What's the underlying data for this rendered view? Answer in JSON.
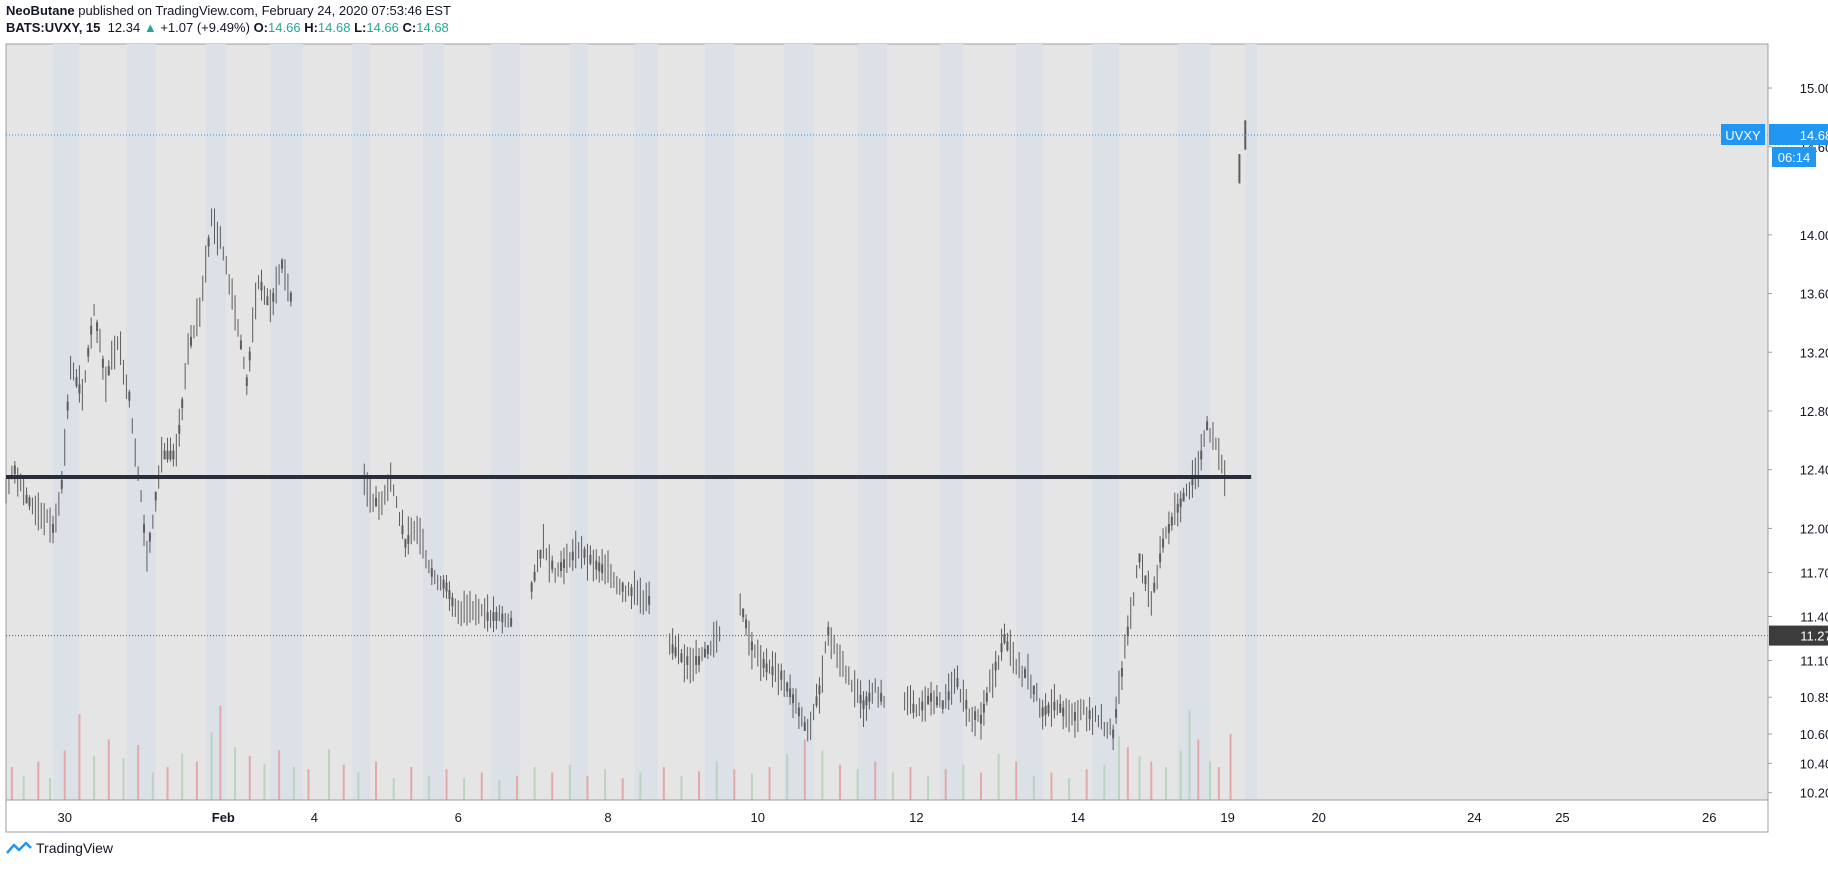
{
  "header": {
    "author": "NeoButane",
    "published_text": "published on TradingView.com, February 24, 2020 07:53:46 EST",
    "symbol": "BATS:UVXY, 15",
    "last": "12.34",
    "change": "+1.07 (+9.49%)",
    "o_label": "O:",
    "o_value": "14.66",
    "h_label": "H:",
    "h_value": "14.68",
    "l_label": "L:",
    "l_value": "14.66",
    "c_label": "C:",
    "c_value": "14.68",
    "up_arrow_icon": "triangle-up-icon"
  },
  "footer": {
    "brand": "TradingView",
    "logo_icon": "tradingview-logo-icon"
  },
  "colors": {
    "plot_bg": "#e5e5e5",
    "session_band": "#dbe1e7",
    "candle": "#5d5d5d",
    "vol_up": "#b9d4bf",
    "vol_down": "#e2a9a9",
    "level_line": "#2a2e39",
    "last_price": "#2196f3",
    "support_tag": "#3c3c3c"
  },
  "chart_data": {
    "type": "candlestick",
    "ylim": [
      10.15,
      15.3
    ],
    "y_ticks": [
      "15.00",
      "14.60",
      "14.00",
      "13.60",
      "13.20",
      "12.80",
      "12.40",
      "12.00",
      "11.70",
      "11.40",
      "11.10",
      "10.85",
      "10.60",
      "10.40",
      "10.20"
    ],
    "x_ticks": [
      "30",
      "Feb",
      "4",
      "6",
      "8",
      "10",
      "12",
      "14",
      "19",
      "20",
      "24",
      "25",
      "26"
    ],
    "x_tick_index": [
      2.0,
      7.4,
      10.5,
      15.4,
      20.5,
      25.6,
      31.0,
      36.5,
      41.6,
      44.7,
      50.0,
      53.0,
      58.0
    ],
    "x_range": [
      0,
      60
    ],
    "close_path": [
      [
        0,
        12.25
      ],
      [
        0.3,
        12.4
      ],
      [
        0.7,
        12.2
      ],
      [
        1.2,
        12.1
      ],
      [
        1.6,
        12.0
      ],
      [
        1.9,
        12.3
      ],
      [
        2.2,
        13.1
      ],
      [
        2.6,
        12.9
      ],
      [
        3.0,
        13.5
      ],
      [
        3.4,
        13.0
      ],
      [
        3.8,
        13.3
      ],
      [
        4.2,
        12.9
      ],
      [
        4.6,
        12.2
      ],
      [
        4.8,
        11.8
      ],
      [
        5.3,
        12.5
      ],
      [
        5.8,
        12.5
      ],
      [
        6.2,
        13.2
      ],
      [
        6.6,
        13.5
      ],
      [
        7.0,
        14.1
      ],
      [
        7.4,
        13.9
      ],
      [
        7.8,
        13.5
      ],
      [
        8.2,
        13.0
      ],
      [
        8.6,
        13.7
      ],
      [
        9.0,
        13.5
      ],
      [
        9.4,
        13.8
      ],
      [
        9.8,
        13.5
      ],
      [
        10.4,
        13.6
      ],
      [
        11.0,
        12.5
      ],
      [
        11.6,
        12.4
      ],
      [
        12.2,
        12.3
      ],
      [
        12.7,
        12.15
      ],
      [
        13.1,
        12.35
      ],
      [
        13.6,
        11.9
      ],
      [
        14.0,
        12.0
      ],
      [
        14.5,
        11.7
      ],
      [
        15.0,
        11.6
      ],
      [
        15.4,
        11.4
      ],
      [
        15.8,
        11.5
      ],
      [
        16.3,
        11.4
      ],
      [
        16.8,
        11.4
      ],
      [
        17.3,
        11.35
      ],
      [
        17.9,
        11.6
      ],
      [
        18.3,
        11.9
      ],
      [
        18.7,
        11.7
      ],
      [
        19.2,
        11.8
      ],
      [
        19.6,
        11.85
      ],
      [
        20.1,
        11.75
      ],
      [
        20.5,
        11.7
      ],
      [
        21.0,
        11.6
      ],
      [
        21.5,
        11.55
      ],
      [
        22.0,
        11.5
      ],
      [
        22.6,
        11.2
      ],
      [
        23.1,
        11.1
      ],
      [
        23.6,
        11.1
      ],
      [
        24.0,
        11.2
      ],
      [
        24.4,
        11.35
      ],
      [
        25.0,
        11.5
      ],
      [
        25.4,
        11.2
      ],
      [
        25.9,
        11.05
      ],
      [
        26.4,
        11.0
      ],
      [
        26.9,
        10.8
      ],
      [
        27.3,
        10.6
      ],
      [
        27.7,
        10.9
      ],
      [
        28.0,
        11.3
      ],
      [
        28.4,
        11.1
      ],
      [
        28.8,
        10.95
      ],
      [
        29.2,
        10.8
      ],
      [
        29.6,
        10.9
      ],
      [
        30.0,
        10.8
      ],
      [
        30.6,
        10.85
      ],
      [
        31.0,
        10.75
      ],
      [
        31.5,
        10.85
      ],
      [
        31.9,
        10.8
      ],
      [
        32.4,
        10.95
      ],
      [
        32.8,
        10.75
      ],
      [
        33.2,
        10.7
      ],
      [
        33.6,
        11.0
      ],
      [
        34.0,
        11.25
      ],
      [
        34.4,
        11.05
      ],
      [
        34.8,
        11.0
      ],
      [
        35.3,
        10.75
      ],
      [
        35.8,
        10.8
      ],
      [
        36.2,
        10.7
      ],
      [
        36.7,
        10.75
      ],
      [
        37.2,
        10.7
      ],
      [
        37.7,
        10.6
      ],
      [
        38.2,
        11.3
      ],
      [
        38.6,
        11.8
      ],
      [
        39.0,
        11.5
      ],
      [
        39.4,
        11.9
      ],
      [
        39.8,
        12.1
      ],
      [
        40.2,
        12.25
      ],
      [
        40.6,
        12.4
      ],
      [
        40.9,
        12.7
      ],
      [
        41.3,
        12.5
      ],
      [
        41.6,
        12.3
      ]
    ],
    "volume_bars": [
      [
        0.2,
        0.3,
        "d"
      ],
      [
        0.6,
        0.22,
        "u"
      ],
      [
        1.1,
        0.35,
        "d"
      ],
      [
        1.5,
        0.2,
        "u"
      ],
      [
        2.0,
        0.45,
        "d"
      ],
      [
        2.5,
        0.78,
        "d"
      ],
      [
        3.0,
        0.4,
        "u"
      ],
      [
        3.5,
        0.55,
        "d"
      ],
      [
        4.0,
        0.38,
        "u"
      ],
      [
        4.5,
        0.5,
        "d"
      ],
      [
        5.0,
        0.25,
        "u"
      ],
      [
        5.5,
        0.3,
        "d"
      ],
      [
        6.0,
        0.42,
        "u"
      ],
      [
        6.5,
        0.35,
        "d"
      ],
      [
        7.0,
        0.62,
        "u"
      ],
      [
        7.3,
        0.86,
        "d"
      ],
      [
        7.8,
        0.48,
        "u"
      ],
      [
        8.3,
        0.4,
        "d"
      ],
      [
        8.8,
        0.33,
        "u"
      ],
      [
        9.3,
        0.45,
        "d"
      ],
      [
        9.8,
        0.3,
        "u"
      ],
      [
        10.3,
        0.28,
        "d"
      ],
      [
        11.0,
        0.46,
        "u"
      ],
      [
        11.5,
        0.32,
        "d"
      ],
      [
        12.0,
        0.25,
        "u"
      ],
      [
        12.6,
        0.35,
        "d"
      ],
      [
        13.2,
        0.2,
        "u"
      ],
      [
        13.8,
        0.3,
        "d"
      ],
      [
        14.4,
        0.22,
        "u"
      ],
      [
        15.0,
        0.28,
        "d"
      ],
      [
        15.6,
        0.2,
        "u"
      ],
      [
        16.2,
        0.25,
        "d"
      ],
      [
        16.8,
        0.18,
        "u"
      ],
      [
        17.4,
        0.22,
        "d"
      ],
      [
        18.0,
        0.3,
        "u"
      ],
      [
        18.6,
        0.25,
        "d"
      ],
      [
        19.2,
        0.32,
        "u"
      ],
      [
        19.8,
        0.22,
        "d"
      ],
      [
        20.4,
        0.28,
        "u"
      ],
      [
        21.0,
        0.2,
        "d"
      ],
      [
        21.6,
        0.25,
        "u"
      ],
      [
        22.4,
        0.3,
        "d"
      ],
      [
        23.0,
        0.22,
        "u"
      ],
      [
        23.6,
        0.26,
        "d"
      ],
      [
        24.2,
        0.35,
        "u"
      ],
      [
        24.8,
        0.28,
        "d"
      ],
      [
        25.4,
        0.24,
        "u"
      ],
      [
        26.0,
        0.3,
        "d"
      ],
      [
        26.6,
        0.42,
        "u"
      ],
      [
        27.2,
        0.55,
        "d"
      ],
      [
        27.8,
        0.45,
        "u"
      ],
      [
        28.4,
        0.32,
        "d"
      ],
      [
        29.0,
        0.28,
        "u"
      ],
      [
        29.6,
        0.35,
        "d"
      ],
      [
        30.2,
        0.25,
        "u"
      ],
      [
        30.8,
        0.3,
        "d"
      ],
      [
        31.4,
        0.22,
        "u"
      ],
      [
        32.0,
        0.28,
        "d"
      ],
      [
        32.6,
        0.32,
        "u"
      ],
      [
        33.2,
        0.25,
        "d"
      ],
      [
        33.8,
        0.42,
        "u"
      ],
      [
        34.4,
        0.35,
        "d"
      ],
      [
        35.0,
        0.22,
        "u"
      ],
      [
        35.6,
        0.25,
        "d"
      ],
      [
        36.2,
        0.2,
        "u"
      ],
      [
        36.8,
        0.28,
        "d"
      ],
      [
        37.4,
        0.32,
        "u"
      ],
      [
        37.9,
        0.58,
        "u"
      ],
      [
        38.2,
        0.48,
        "d"
      ],
      [
        38.6,
        0.4,
        "u"
      ],
      [
        39.0,
        0.35,
        "d"
      ],
      [
        39.5,
        0.3,
        "u"
      ],
      [
        40.0,
        0.45,
        "u"
      ],
      [
        40.3,
        0.82,
        "u"
      ],
      [
        40.6,
        0.55,
        "d"
      ],
      [
        41.0,
        0.35,
        "u"
      ],
      [
        41.3,
        0.3,
        "d"
      ],
      [
        41.7,
        0.6,
        "d"
      ]
    ],
    "session_bands": [
      [
        1.6,
        2.5
      ],
      [
        4.1,
        5.1
      ],
      [
        6.8,
        7.5
      ],
      [
        9.0,
        10.1
      ],
      [
        11.8,
        12.4
      ],
      [
        14.2,
        14.9
      ],
      [
        16.5,
        17.5
      ],
      [
        19.2,
        19.8
      ],
      [
        21.4,
        22.2
      ],
      [
        23.8,
        24.8
      ],
      [
        26.5,
        27.5
      ],
      [
        29.0,
        30.0
      ],
      [
        31.8,
        32.6
      ],
      [
        34.4,
        35.3
      ],
      [
        37.0,
        37.9
      ],
      [
        39.9,
        41.0
      ],
      [
        42.2,
        42.6
      ]
    ],
    "level_line": {
      "value": 12.35,
      "x_end": 42.4
    },
    "support_line": {
      "value": 11.27,
      "label": "11.27"
    },
    "last_price_line": {
      "value": 14.68
    },
    "gap_points": [
      [
        42.0,
        14.45
      ],
      [
        42.2,
        14.68
      ]
    ],
    "last_tag": {
      "symbol": "UVXY",
      "value": "14.68",
      "countdown": "06:14"
    }
  }
}
